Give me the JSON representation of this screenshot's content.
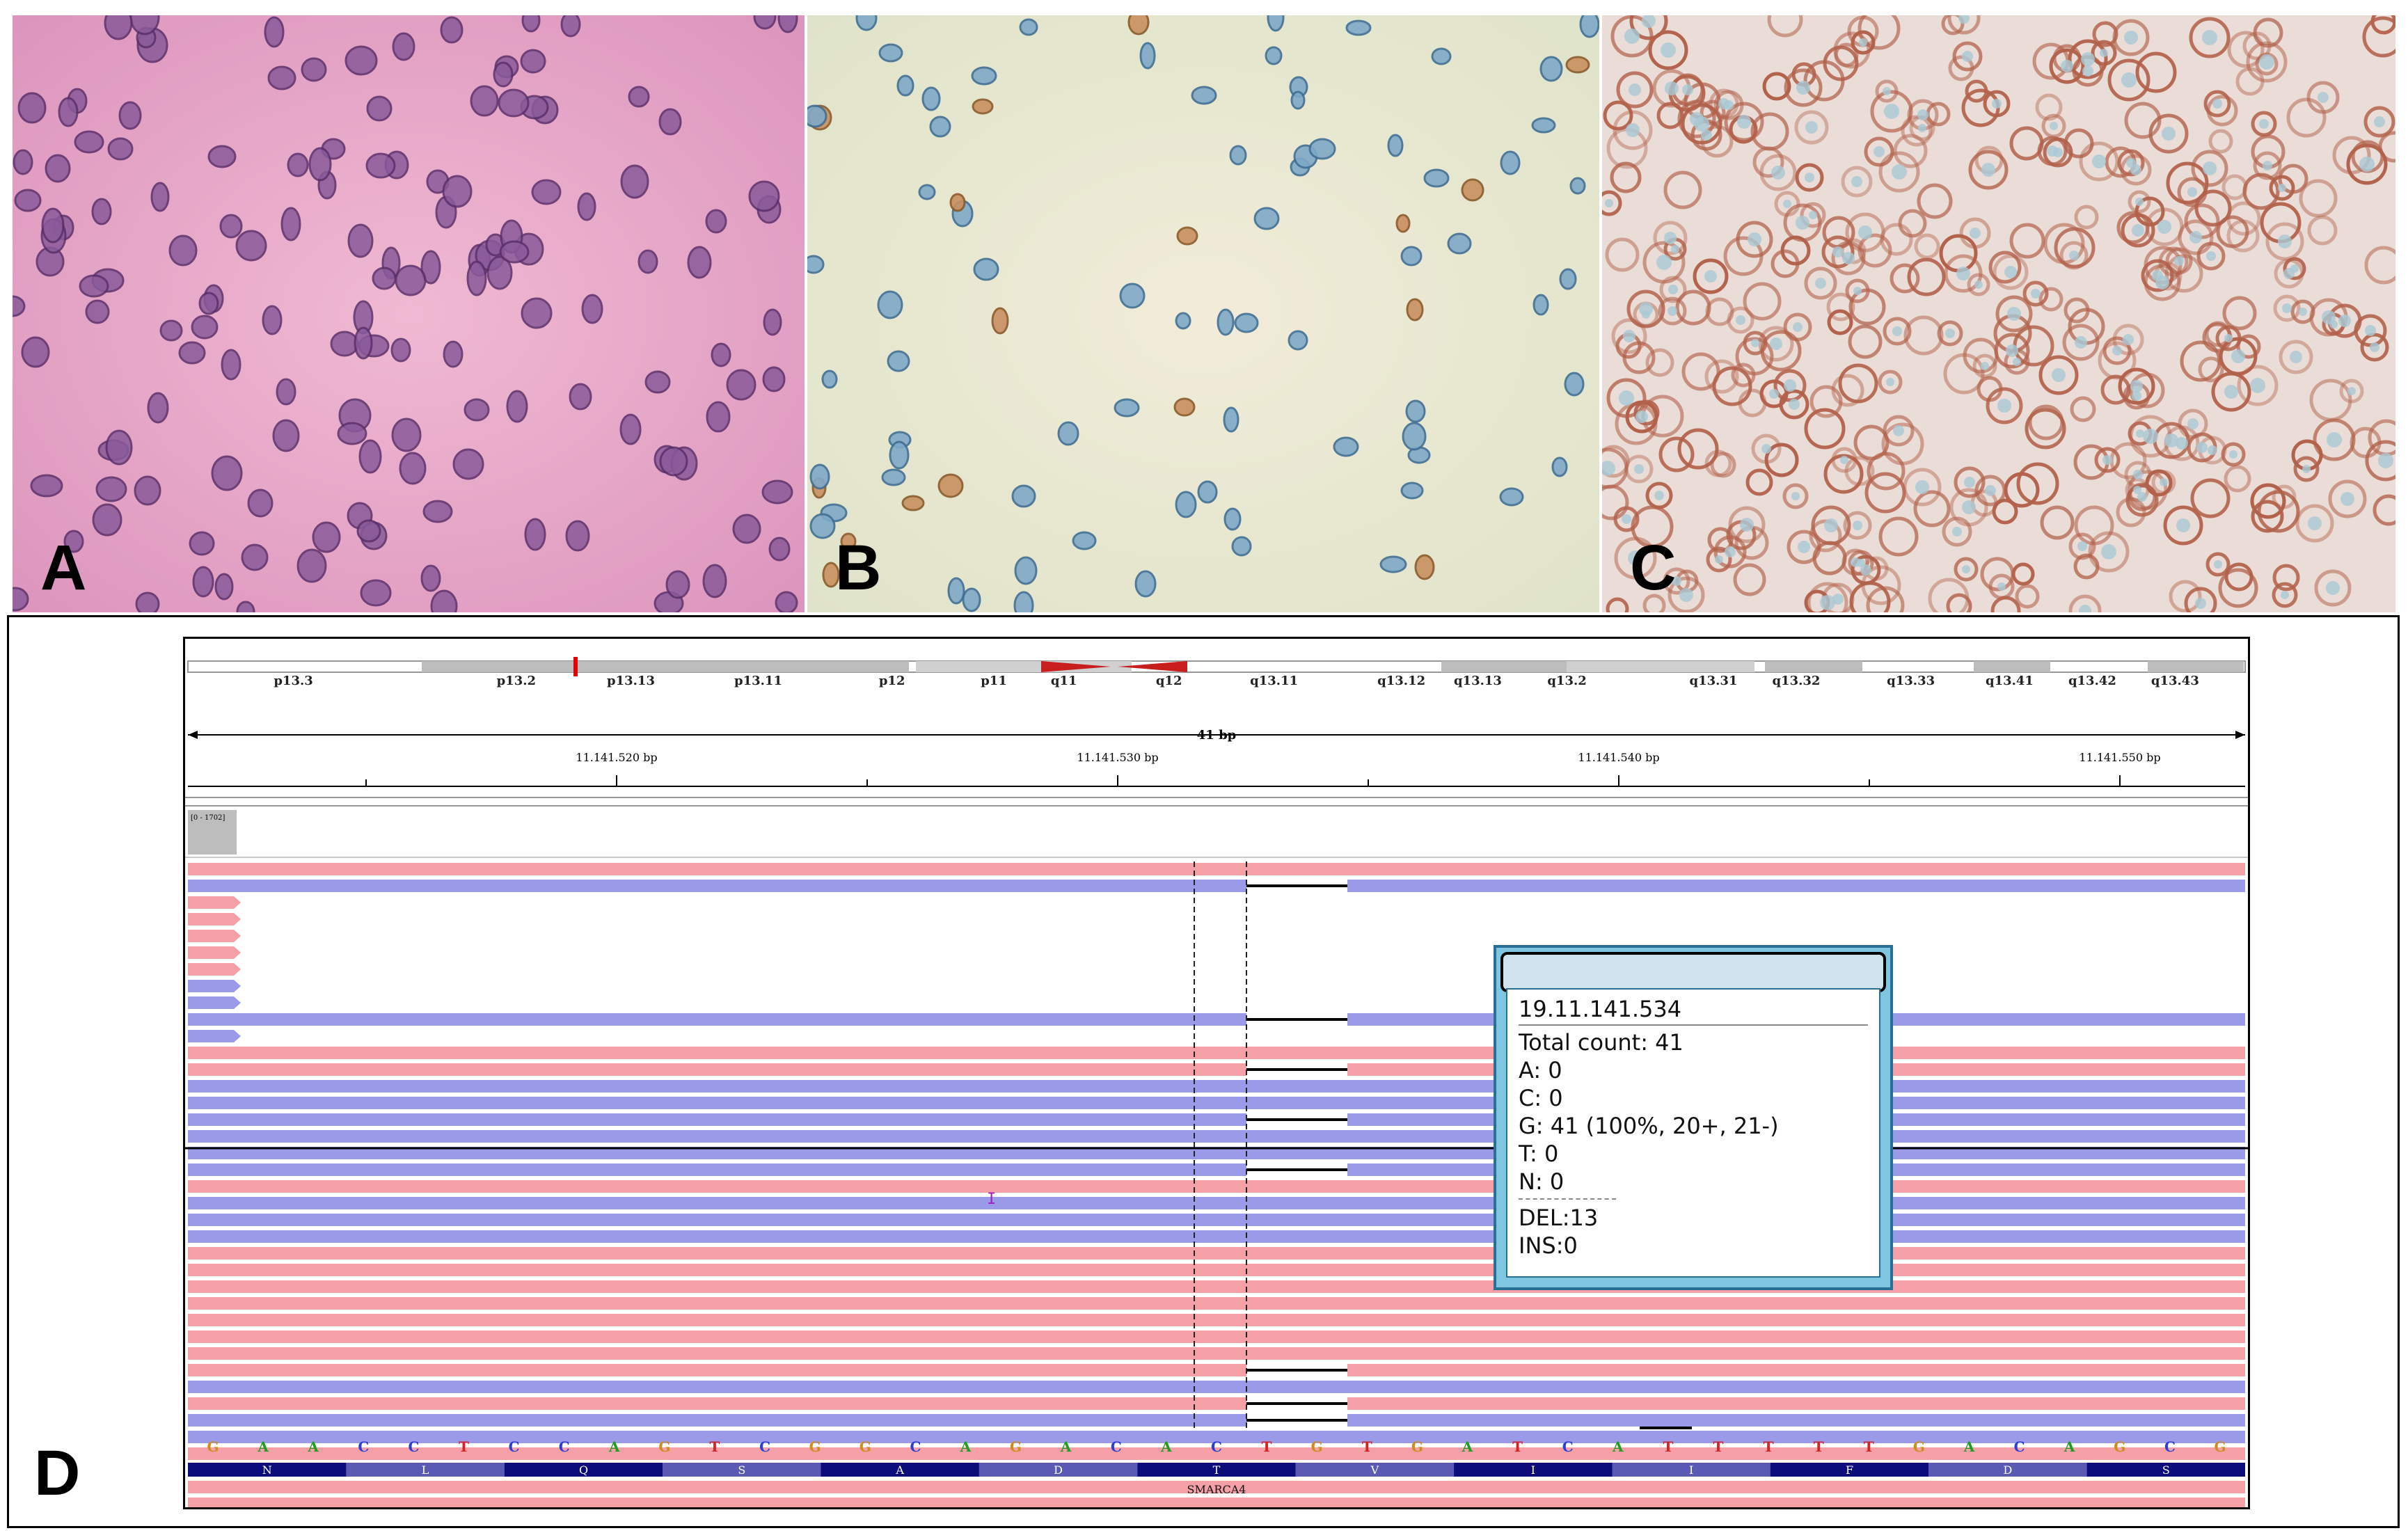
{
  "panels": {
    "a": {
      "letter": "A"
    },
    "b": {
      "letter": "B"
    },
    "c": {
      "letter": "C"
    },
    "d": {
      "letter": "D"
    }
  },
  "igv": {
    "cytobands": [
      "p13.3",
      "p13.2",
      "p13.13",
      "p13.11",
      "p12",
      "p11",
      "q11",
      "q12",
      "q13.11",
      "q13.12",
      "q13.13",
      "q13.2",
      "q13.31",
      "q13.32",
      "q13.33",
      "q13.41",
      "q13.42",
      "q13.43"
    ],
    "ruler_span": "41 bp",
    "ruler_ticks": [
      "11.141.520 bp",
      "11.141.530 bp",
      "11.141.540 bp",
      "11.141.550 bp"
    ],
    "coverage_range": "[0 - 1702]",
    "sequence": [
      "G",
      "A",
      "A",
      "C",
      "C",
      "T",
      "C",
      "C",
      "A",
      "G",
      "T",
      "C",
      "G",
      "G",
      "C",
      "A",
      "G",
      "A",
      "C",
      "A",
      "C",
      "T",
      "G",
      "T",
      "G",
      "A",
      "T",
      "C",
      "A",
      "T",
      "T",
      "T",
      "T",
      "T",
      "G",
      "A",
      "C",
      "A",
      "G",
      "C",
      "G"
    ],
    "amino_acids": [
      "N",
      "L",
      "Q",
      "S",
      "A",
      "D",
      "T",
      "V",
      "I",
      "I",
      "F",
      "D",
      "S"
    ],
    "gene": "SMARCA4",
    "insertion_marker": "I",
    "colors": {
      "forward_read": "#f4a0a6",
      "reverse_read": "#9a9ae8",
      "A": "#1f9d1f",
      "C": "#2b3fd6",
      "G": "#d18b1a",
      "T": "#d62222"
    }
  },
  "popup": {
    "position": "19.11.141.534",
    "total": "Total count: 41",
    "a": "A: 0",
    "c": "C: 0",
    "g": "G: 41 (100%, 20+, 21-)",
    "t": "T: 0",
    "n": "N: 0",
    "del": "DEL:13",
    "ins": "INS:0"
  }
}
